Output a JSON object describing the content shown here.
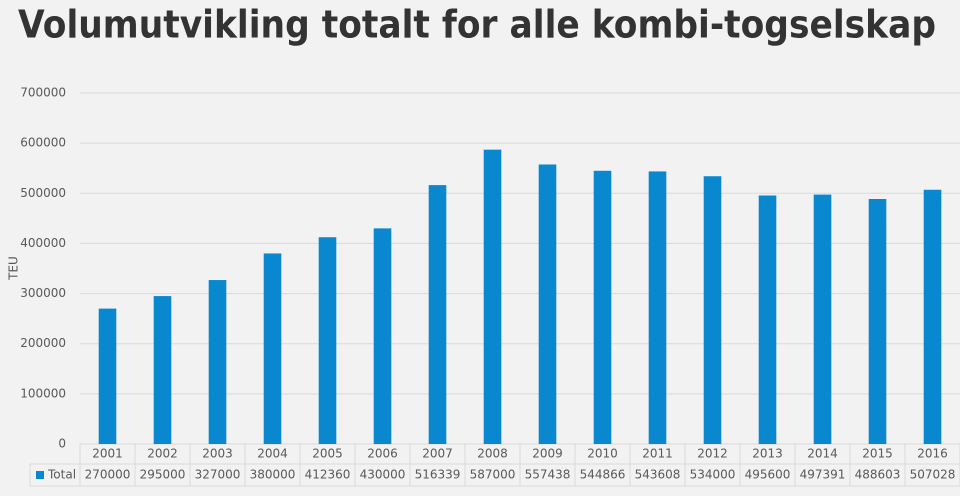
{
  "chart_data": {
    "type": "bar",
    "title": "Volumutvikling totalt for alle kombi-togselskap",
    "y_label": "TEU",
    "categories": [
      "2001",
      "2002",
      "2003",
      "2004",
      "2005",
      "2006",
      "2007",
      "2008",
      "2009",
      "2010",
      "2011",
      "2012",
      "2013",
      "2014",
      "2015",
      "2016"
    ],
    "series": [
      {
        "name": "Total",
        "color": "#0a88cf",
        "values": [
          270000,
          295000,
          327000,
          380000,
          412360,
          430000,
          516339,
          587000,
          557438,
          544866,
          543608,
          534000,
          495600,
          497391,
          488603,
          507028
        ]
      }
    ],
    "ylim": [
      0,
      700000
    ],
    "yticks": [
      0,
      100000,
      200000,
      300000,
      400000,
      500000,
      600000,
      700000
    ],
    "grid": true,
    "data_table": true
  }
}
